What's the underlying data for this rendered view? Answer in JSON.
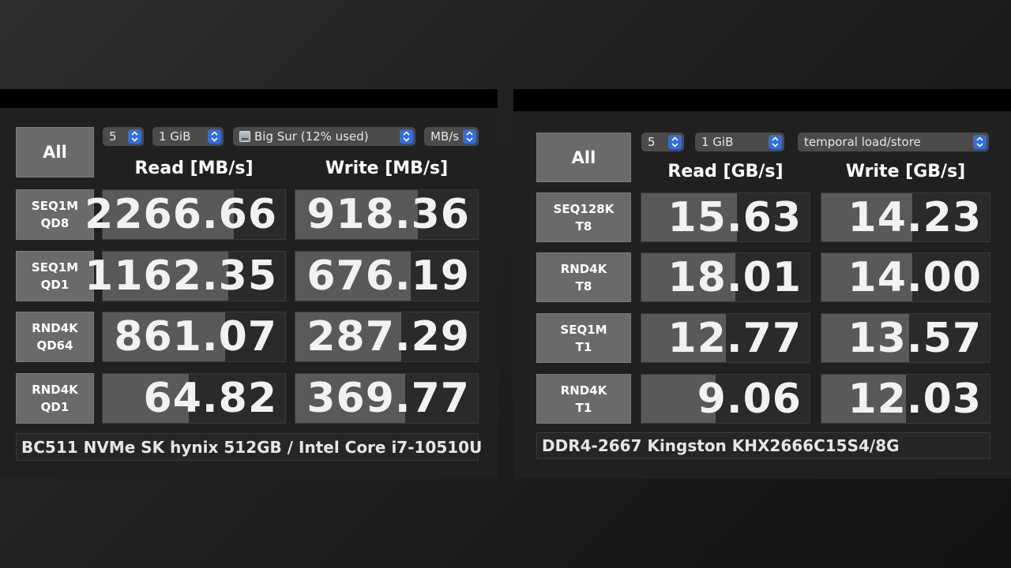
{
  "left": {
    "all_label": "All",
    "count": "5",
    "size": "1 GiB",
    "drive": "Big Sur (12% used)",
    "unit": "MB/s",
    "read_header": "Read [MB/s]",
    "write_header": "Write [MB/s]",
    "rows": [
      {
        "line1": "SEQ1M",
        "line2": "QD8",
        "read": "2266.66",
        "write": "918.36",
        "read_fill": 0.72,
        "write_fill": 0.67
      },
      {
        "line1": "SEQ1M",
        "line2": "QD1",
        "read": "1162.35",
        "write": "676.19",
        "read_fill": 0.69,
        "write_fill": 0.63
      },
      {
        "line1": "RND4K",
        "line2": "QD64",
        "read": "861.07",
        "write": "287.29",
        "read_fill": 0.67,
        "write_fill": 0.58
      },
      {
        "line1": "RND4K",
        "line2": "QD1",
        "read": "64.82",
        "write": "369.77",
        "read_fill": 0.47,
        "write_fill": 0.6
      }
    ],
    "comment": "BC511 NVMe SK hynix 512GB / Intel Core i7-10510U"
  },
  "right": {
    "all_label": "All",
    "count": "5",
    "size": "1 GiB",
    "mode": "temporal load/store",
    "read_header": "Read [GB/s]",
    "write_header": "Write [GB/s]",
    "rows": [
      {
        "line1": "SEQ128K",
        "line2": "T8",
        "read": "15.63",
        "write": "14.23",
        "read_fill": 0.57,
        "write_fill": 0.54
      },
      {
        "line1": "RND4K",
        "line2": "T8",
        "read": "18.01",
        "write": "14.00",
        "read_fill": 0.56,
        "write_fill": 0.54
      },
      {
        "line1": "SEQ1M",
        "line2": "T1",
        "read": "12.77",
        "write": "13.57",
        "read_fill": 0.5,
        "write_fill": 0.52
      },
      {
        "line1": "RND4K",
        "line2": "T1",
        "read": "9.06",
        "write": "12.03",
        "read_fill": 0.44,
        "write_fill": 0.5
      }
    ],
    "comment": "DDR4-2667 Kingston KHX2666C15S4/8G"
  },
  "colors": {
    "cell_fill": "#595959",
    "cell_bg": "#2a2a2a",
    "label_bg": "#6a6a6a",
    "select_arrow": "#2f6ee0"
  }
}
